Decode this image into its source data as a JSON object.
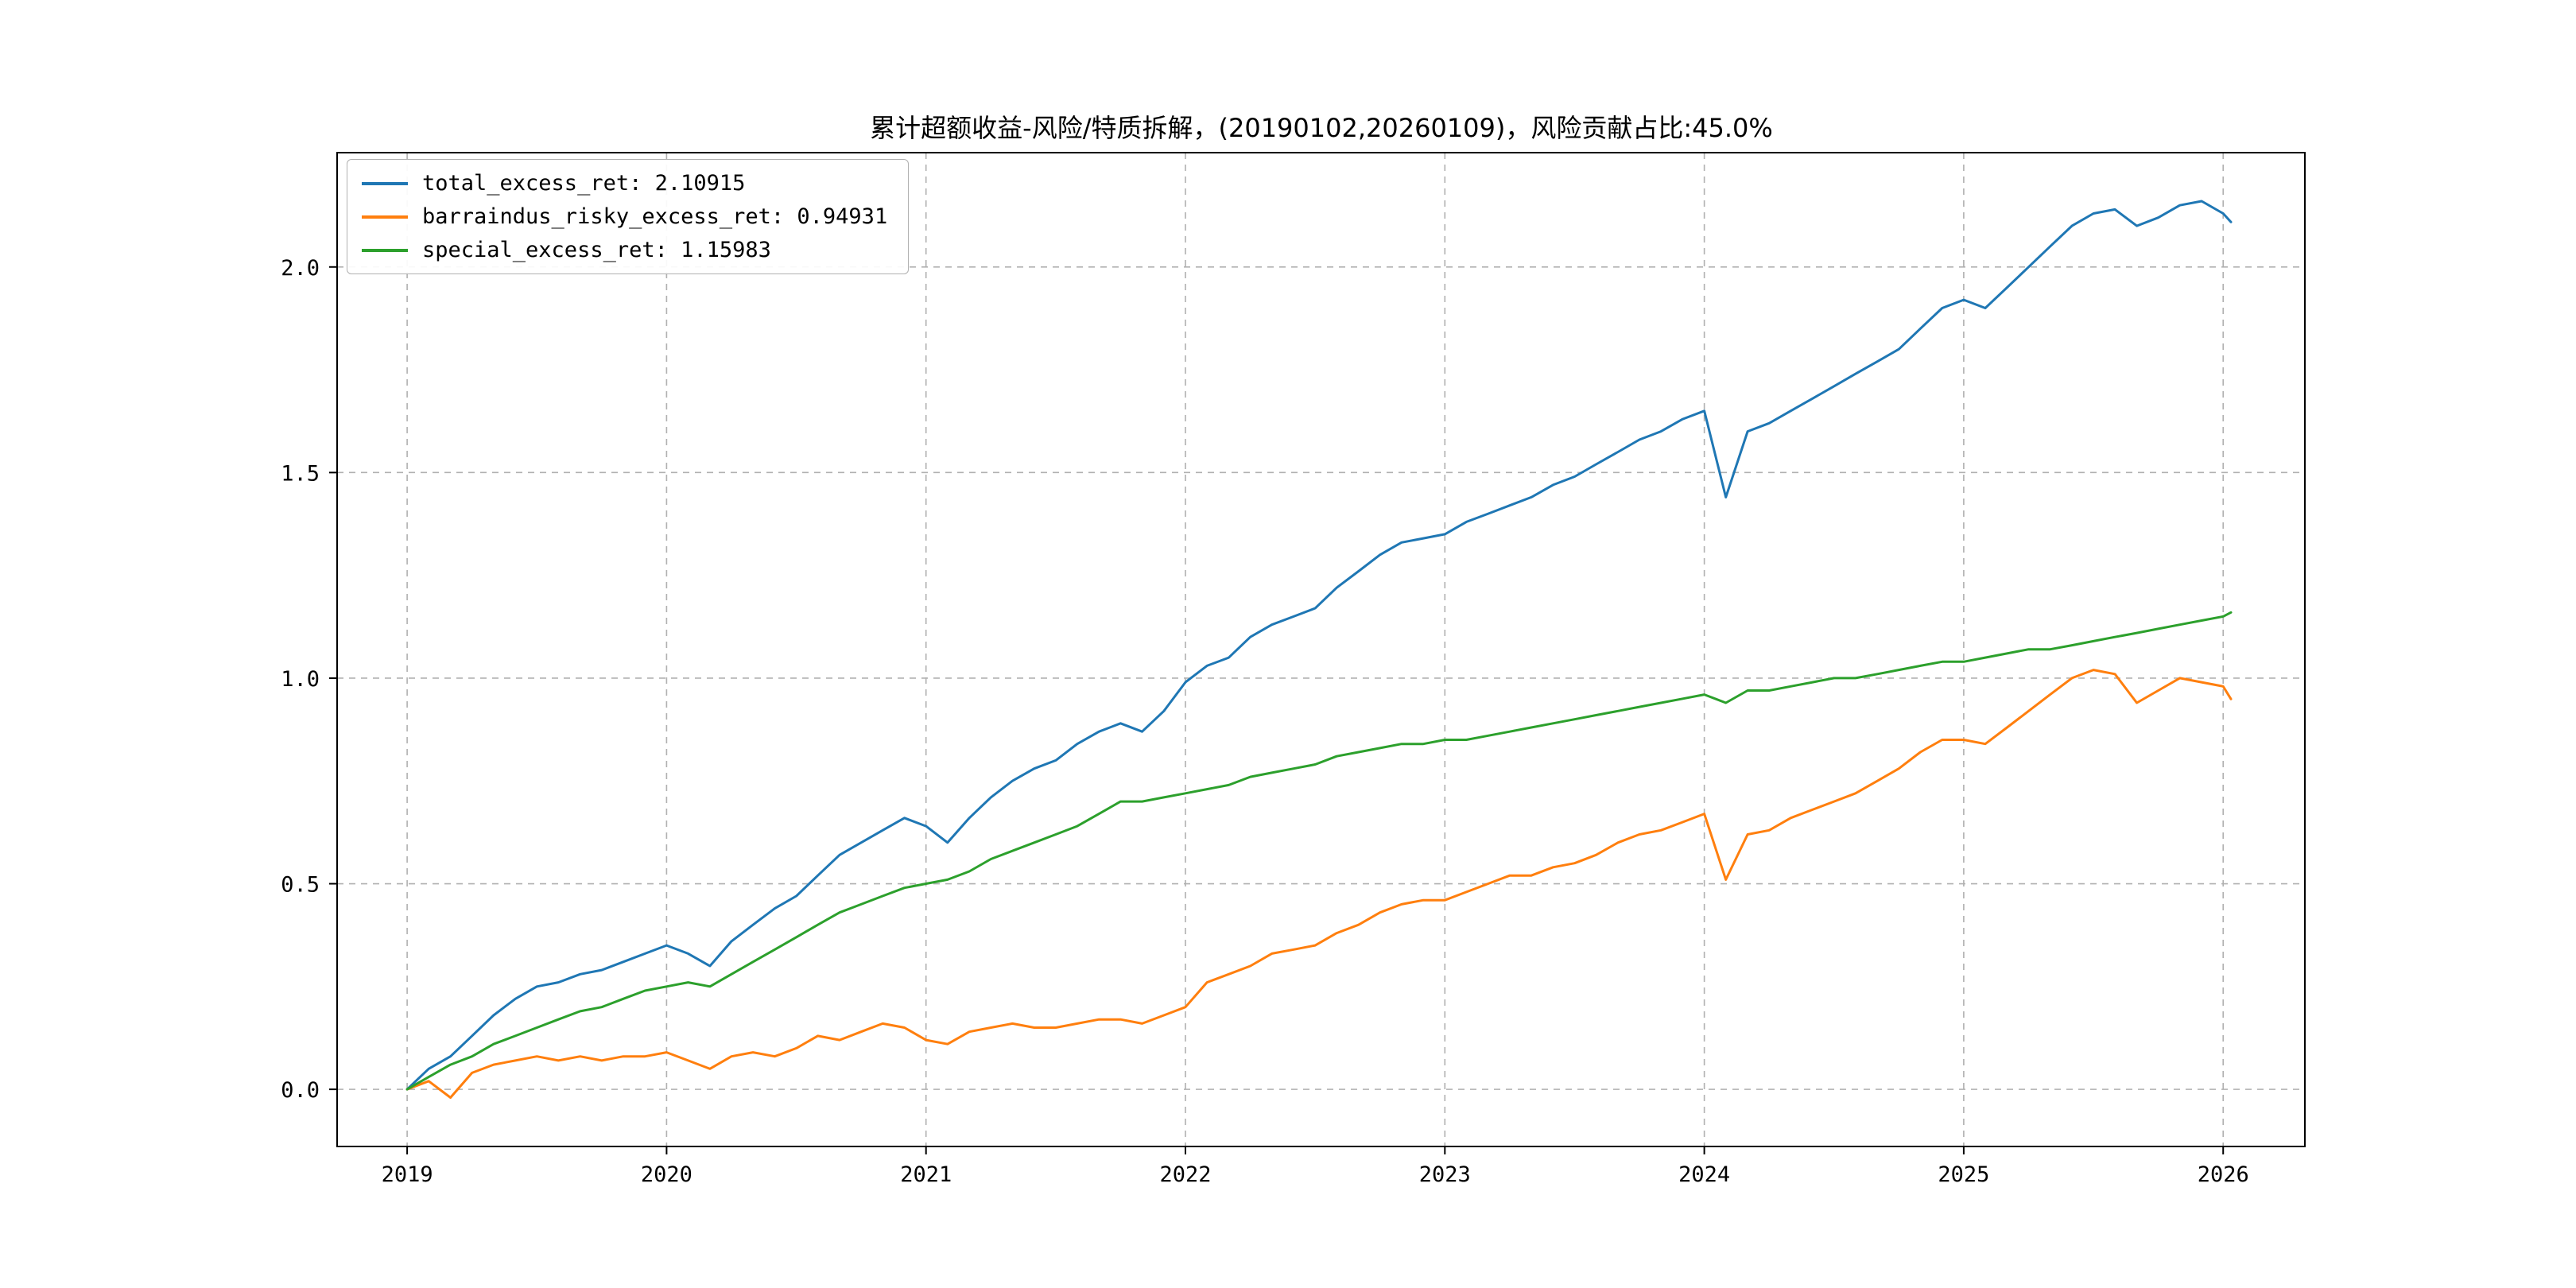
{
  "chart_data": {
    "type": "line",
    "title": "累计超额收益-风险/特质拆解，(20190102,20260109)，风险贡献占比:45.0%",
    "grid": true,
    "legend_position": "upper left",
    "xlim": [
      2018.73,
      2026.315
    ],
    "ylim": [
      -0.139,
      2.278
    ],
    "x_ticks": [
      2019,
      2020,
      2021,
      2022,
      2023,
      2024,
      2025,
      2026
    ],
    "y_ticks": [
      0.0,
      0.5,
      1.0,
      1.5,
      2.0
    ],
    "x": [
      2019.0,
      2019.083,
      2019.167,
      2019.25,
      2019.333,
      2019.417,
      2019.5,
      2019.583,
      2019.667,
      2019.75,
      2019.833,
      2019.917,
      2020.0,
      2020.083,
      2020.167,
      2020.25,
      2020.333,
      2020.417,
      2020.5,
      2020.583,
      2020.667,
      2020.75,
      2020.833,
      2020.917,
      2021.0,
      2021.083,
      2021.167,
      2021.25,
      2021.333,
      2021.417,
      2021.5,
      2021.583,
      2021.667,
      2021.75,
      2021.833,
      2021.917,
      2022.0,
      2022.083,
      2022.167,
      2022.25,
      2022.333,
      2022.417,
      2022.5,
      2022.583,
      2022.667,
      2022.75,
      2022.833,
      2022.917,
      2023.0,
      2023.083,
      2023.167,
      2023.25,
      2023.333,
      2023.417,
      2023.5,
      2023.583,
      2023.667,
      2023.75,
      2023.833,
      2023.917,
      2024.0,
      2024.083,
      2024.167,
      2024.25,
      2024.333,
      2024.417,
      2024.5,
      2024.583,
      2024.667,
      2024.75,
      2024.833,
      2024.917,
      2025.0,
      2025.083,
      2025.167,
      2025.25,
      2025.333,
      2025.417,
      2025.5,
      2025.583,
      2025.667,
      2025.75,
      2025.833,
      2025.917,
      2026.0,
      2026.03
    ],
    "series": [
      {
        "name": "total_excess_ret",
        "final_value": 2.10915,
        "color": "#1f77b4",
        "values": [
          0.0,
          0.05,
          0.08,
          0.13,
          0.18,
          0.22,
          0.25,
          0.26,
          0.28,
          0.29,
          0.31,
          0.33,
          0.35,
          0.33,
          0.3,
          0.36,
          0.4,
          0.44,
          0.47,
          0.52,
          0.57,
          0.6,
          0.63,
          0.66,
          0.64,
          0.6,
          0.66,
          0.71,
          0.75,
          0.78,
          0.8,
          0.84,
          0.87,
          0.89,
          0.87,
          0.92,
          0.99,
          1.03,
          1.05,
          1.1,
          1.13,
          1.15,
          1.17,
          1.22,
          1.26,
          1.3,
          1.33,
          1.34,
          1.35,
          1.38,
          1.4,
          1.42,
          1.44,
          1.47,
          1.49,
          1.52,
          1.55,
          1.58,
          1.6,
          1.63,
          1.65,
          1.44,
          1.6,
          1.62,
          1.65,
          1.68,
          1.71,
          1.74,
          1.77,
          1.8,
          1.85,
          1.9,
          1.92,
          1.9,
          1.95,
          2.0,
          2.05,
          2.1,
          2.13,
          2.14,
          2.1,
          2.12,
          2.15,
          2.16,
          2.13,
          2.10915
        ]
      },
      {
        "name": "barraindus_risky_excess_ret",
        "final_value": 0.94931,
        "color": "#ff7f0e",
        "values": [
          0.0,
          0.02,
          -0.02,
          0.04,
          0.06,
          0.07,
          0.08,
          0.07,
          0.08,
          0.07,
          0.08,
          0.08,
          0.09,
          0.07,
          0.05,
          0.08,
          0.09,
          0.08,
          0.1,
          0.13,
          0.12,
          0.14,
          0.16,
          0.15,
          0.12,
          0.11,
          0.14,
          0.15,
          0.16,
          0.15,
          0.15,
          0.16,
          0.17,
          0.17,
          0.16,
          0.18,
          0.2,
          0.26,
          0.28,
          0.3,
          0.33,
          0.34,
          0.35,
          0.38,
          0.4,
          0.43,
          0.45,
          0.46,
          0.46,
          0.48,
          0.5,
          0.52,
          0.52,
          0.54,
          0.55,
          0.57,
          0.6,
          0.62,
          0.63,
          0.65,
          0.67,
          0.51,
          0.62,
          0.63,
          0.66,
          0.68,
          0.7,
          0.72,
          0.75,
          0.78,
          0.82,
          0.85,
          0.85,
          0.84,
          0.88,
          0.92,
          0.96,
          1.0,
          1.02,
          1.01,
          0.94,
          0.97,
          1.0,
          0.99,
          0.98,
          0.94931
        ]
      },
      {
        "name": "special_excess_ret",
        "final_value": 1.15983,
        "color": "#2ca02c",
        "values": [
          0.0,
          0.03,
          0.06,
          0.08,
          0.11,
          0.13,
          0.15,
          0.17,
          0.19,
          0.2,
          0.22,
          0.24,
          0.25,
          0.26,
          0.25,
          0.28,
          0.31,
          0.34,
          0.37,
          0.4,
          0.43,
          0.45,
          0.47,
          0.49,
          0.5,
          0.51,
          0.53,
          0.56,
          0.58,
          0.6,
          0.62,
          0.64,
          0.67,
          0.7,
          0.7,
          0.71,
          0.72,
          0.73,
          0.74,
          0.76,
          0.77,
          0.78,
          0.79,
          0.81,
          0.82,
          0.83,
          0.84,
          0.84,
          0.85,
          0.85,
          0.86,
          0.87,
          0.88,
          0.89,
          0.9,
          0.91,
          0.92,
          0.93,
          0.94,
          0.95,
          0.96,
          0.94,
          0.97,
          0.97,
          0.98,
          0.99,
          1.0,
          1.0,
          1.01,
          1.02,
          1.03,
          1.04,
          1.04,
          1.05,
          1.06,
          1.07,
          1.07,
          1.08,
          1.09,
          1.1,
          1.11,
          1.12,
          1.13,
          1.14,
          1.15,
          1.15983
        ]
      }
    ]
  },
  "legend": [
    {
      "label": "total_excess_ret: 2.10915",
      "color": "#1f77b4"
    },
    {
      "label": "barraindus_risky_excess_ret: 0.94931",
      "color": "#ff7f0e"
    },
    {
      "label": "special_excess_ret: 1.15983",
      "color": "#2ca02c"
    }
  ]
}
